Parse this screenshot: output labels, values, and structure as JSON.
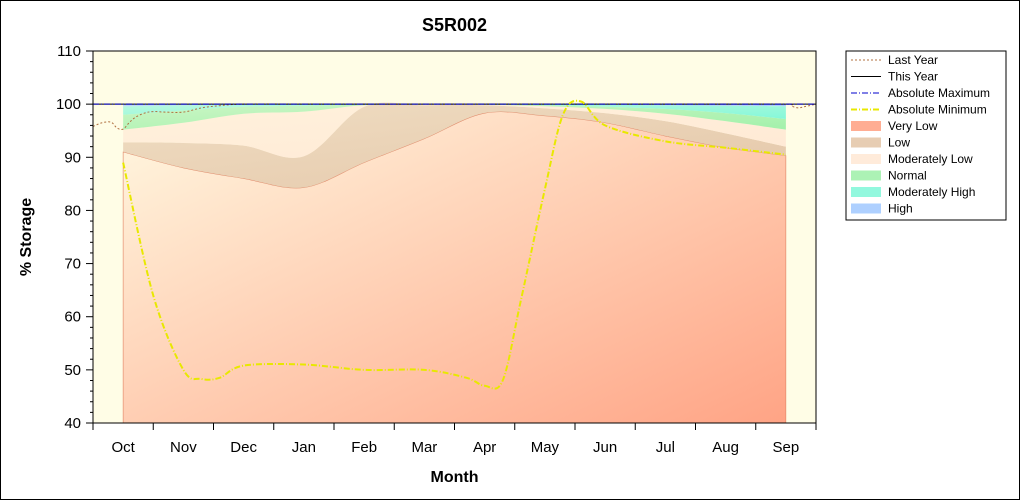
{
  "chart_data": {
    "type": "area",
    "title": "S5R002",
    "xlabel": "Month",
    "ylabel": "% Storage",
    "ylim": [
      40,
      110
    ],
    "yticks": [
      40,
      50,
      60,
      70,
      80,
      90,
      100,
      110
    ],
    "categories": [
      "Oct",
      "Nov",
      "Dec",
      "Jan",
      "Feb",
      "Mar",
      "Apr",
      "May",
      "Jun",
      "Jul",
      "Aug",
      "Sep"
    ],
    "grid": false,
    "legend_position": "right",
    "background_color": "#fffde6",
    "bands": [
      {
        "name": "Very Low",
        "color": "#ff9f80",
        "lower": [
          40,
          40,
          40,
          40,
          40,
          40,
          40,
          40,
          40,
          40,
          40,
          40
        ],
        "upper": [
          91,
          88,
          86,
          84.3,
          89,
          93.5,
          98.3,
          97.8,
          96.5,
          94,
          91.8,
          90.3
        ]
      },
      {
        "name": "Low",
        "color": "#e3c4a6",
        "lower": [
          91,
          88,
          86,
          84.3,
          89,
          93.5,
          98.3,
          97.8,
          96.5,
          94,
          91.8,
          90.3
        ],
        "upper": [
          92.8,
          92.7,
          92.2,
          90.2,
          99.5,
          99.8,
          99.8,
          99.2,
          98.3,
          96.8,
          94.5,
          92
        ]
      },
      {
        "name": "Moderately Low",
        "color": "#ffe8d4",
        "lower": [
          92.8,
          92.7,
          92.2,
          90.2,
          99.5,
          99.8,
          99.8,
          99.2,
          98.3,
          96.8,
          94.5,
          92
        ],
        "upper": [
          95.2,
          96.5,
          98.2,
          98.6,
          99.8,
          99.9,
          99.9,
          99.6,
          99.1,
          98.2,
          96.8,
          95.2
        ]
      },
      {
        "name": "Normal",
        "color": "#9ef0a8",
        "lower": [
          95.2,
          96.5,
          98.2,
          98.6,
          99.8,
          99.9,
          99.9,
          99.6,
          99.1,
          98.2,
          96.8,
          95.2
        ],
        "upper": [
          98,
          98.8,
          99.5,
          99.7,
          99.9,
          99.95,
          99.95,
          99.8,
          99.5,
          99.1,
          98.3,
          97.2
        ]
      },
      {
        "name": "Moderately High",
        "color": "#7ff7d8",
        "lower": [
          98,
          98.8,
          99.5,
          99.7,
          99.9,
          99.95,
          99.95,
          99.8,
          99.5,
          99.1,
          98.3,
          97.2
        ],
        "upper": [
          99.6,
          99.8,
          99.9,
          99.95,
          100,
          100,
          100,
          100,
          99.9,
          99.8,
          99.7,
          99.6
        ]
      },
      {
        "name": "High",
        "color": "#a0c8ff",
        "lower": [
          99.6,
          99.8,
          99.9,
          99.95,
          100,
          100,
          100,
          100,
          99.9,
          99.8,
          99.7,
          99.6
        ],
        "upper": [
          100,
          100,
          100,
          100,
          100,
          100,
          100,
          100,
          100,
          100,
          100,
          100
        ]
      }
    ],
    "series": [
      {
        "name": "Last Year",
        "color": "#b07040",
        "style": "dotted",
        "x": [
          -0.5,
          -0.35,
          -0.2,
          -0.1,
          0.0,
          0.1,
          0.2,
          0.35,
          0.5,
          0.7,
          1.0,
          1.3,
          1.6,
          2.0,
          3.0,
          4.0,
          5.0,
          6.0,
          7.0,
          8.0,
          9.0,
          10.0,
          11.0,
          11.1,
          11.2,
          11.3,
          11.5
        ],
        "y": [
          95.8,
          96.5,
          96.6,
          95.5,
          95.3,
          96.5,
          97.5,
          98.3,
          98.6,
          98.5,
          98.5,
          99.3,
          99.7,
          100,
          100,
          100,
          100,
          100,
          100,
          100,
          100,
          100,
          100,
          99.6,
          99.3,
          99.5,
          100
        ]
      },
      {
        "name": "This Year",
        "color": "#000000",
        "style": "solid",
        "x": [
          -0.5,
          11.5
        ],
        "y": [
          100,
          100
        ]
      },
      {
        "name": "Absolute Maximum",
        "color": "#0000cc",
        "style": "dashdot",
        "x": [
          -0.5,
          11.5
        ],
        "y": [
          100,
          100
        ]
      },
      {
        "name": "Absolute Minimum",
        "color": "#e8e800",
        "style": "dashdot",
        "x": [
          0.0,
          0.5,
          1.0,
          1.3,
          1.6,
          2.0,
          3.0,
          4.0,
          5.0,
          5.7,
          6.0,
          6.3,
          6.6,
          7.0,
          7.3,
          7.6,
          8.0,
          9.0,
          10.0,
          11.0
        ],
        "y": [
          89,
          64,
          50,
          48.3,
          48.5,
          50.8,
          51,
          50,
          50,
          48.5,
          47,
          48,
          63,
          84,
          98,
          100.5,
          96,
          93,
          91.8,
          90.5
        ]
      }
    ],
    "legend": [
      "Last Year",
      "This Year",
      "Absolute Maximum",
      "Absolute Minimum",
      "Very Low",
      "Low",
      "Moderately Low",
      "Normal",
      "Moderately High",
      "High"
    ]
  }
}
